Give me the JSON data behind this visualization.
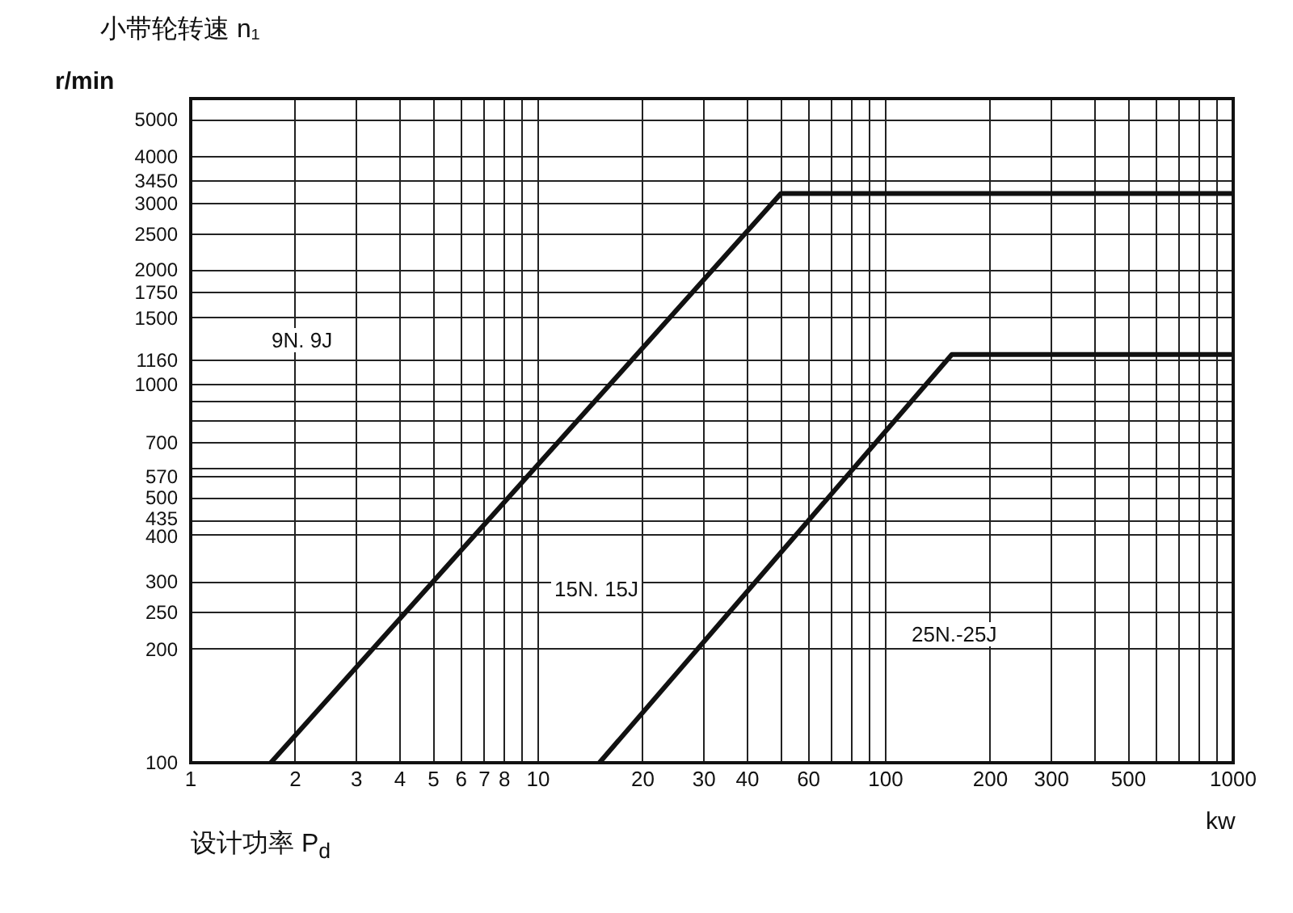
{
  "chart_data": {
    "type": "line",
    "title": "小带轮转速 n₁",
    "ylabel": "r/min",
    "xlabel": "设计功率 P$_{d}$",
    "log": "xy",
    "grid": true,
    "legend": false,
    "marker": "none",
    "line_style": "solid",
    "xlim": [
      1,
      1000
    ],
    "ylim": [
      100,
      5700
    ],
    "xticks": [
      1,
      2,
      3,
      4,
      5,
      6,
      7,
      8,
      {
        "value": 9,
        "label": null
      },
      10,
      20,
      30,
      40,
      {
        "value": 50,
        "label": null
      },
      60,
      {
        "value": 70,
        "label": null
      },
      {
        "value": 80,
        "label": null
      },
      {
        "value": 90,
        "label": null
      },
      100,
      200,
      300,
      {
        "value": 400,
        "label": null
      },
      500,
      {
        "value": 600,
        "label": null
      },
      {
        "value": 700,
        "label": null
      },
      {
        "value": 800,
        "label": null
      },
      {
        "value": 900,
        "label": null
      },
      1000
    ],
    "yticks": [
      100,
      200,
      250,
      300,
      400,
      435,
      500,
      570,
      {
        "value": 600,
        "label": null
      },
      700,
      {
        "value": 800,
        "label": null
      },
      {
        "value": 900,
        "label": null
      },
      1000,
      1160,
      1500,
      1750,
      2000,
      2500,
      3000,
      3450,
      4000,
      5000
    ],
    "series": [
      {
        "color": "#111111",
        "x": [
          1.7,
          50,
          1000
        ],
        "values": [
          100,
          3200,
          3200
        ]
      },
      {
        "color": "#111111",
        "x": [
          15,
          155,
          1000
        ],
        "values": [
          100,
          1200,
          1200
        ]
      }
    ],
    "annotations": [
      "9N. 9J",
      "15N. 15J",
      "25N.-25J",
      "kw"
    ]
  }
}
